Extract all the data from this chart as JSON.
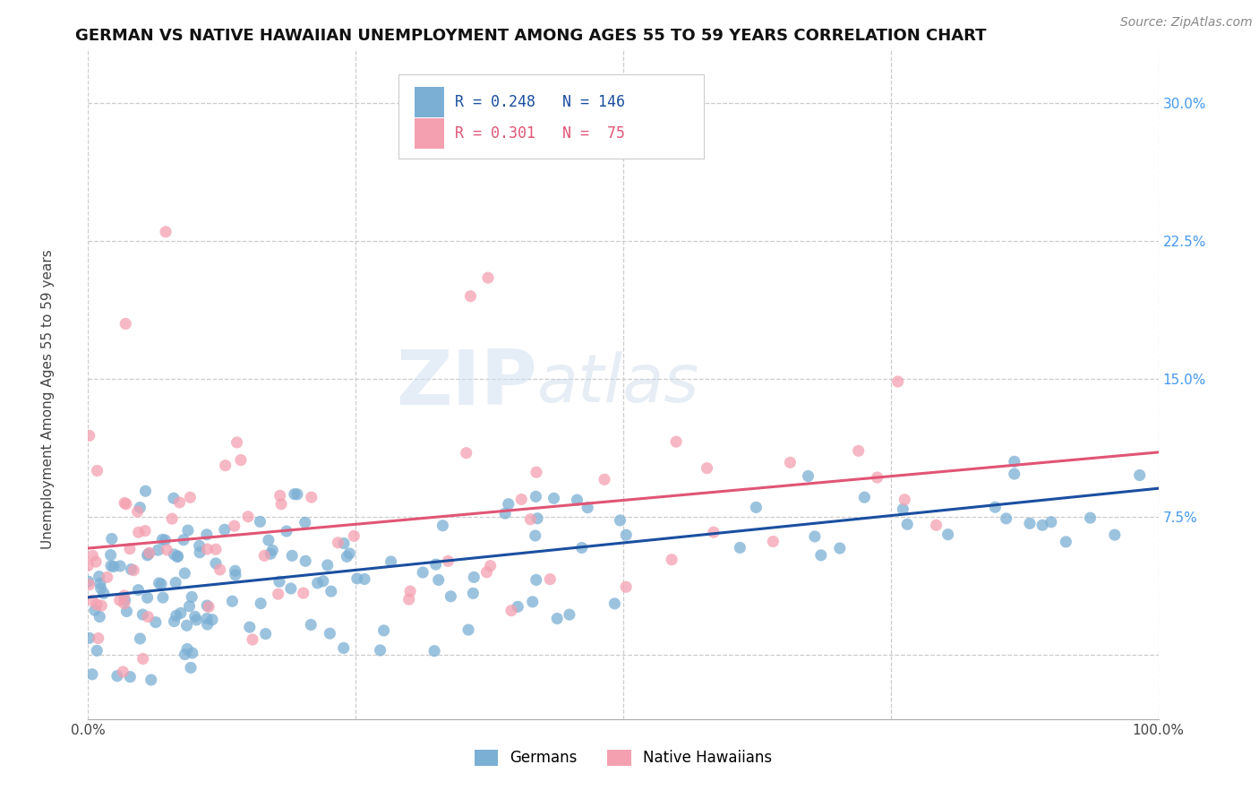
{
  "title": "GERMAN VS NATIVE HAWAIIAN UNEMPLOYMENT AMONG AGES 55 TO 59 YEARS CORRELATION CHART",
  "source": "Source: ZipAtlas.com",
  "ylabel": "Unemployment Among Ages 55 to 59 years",
  "xlim": [
    0.0,
    100.0
  ],
  "ylim": [
    -3.5,
    33.0
  ],
  "ytick_positions": [
    0.0,
    7.5,
    15.0,
    22.5,
    30.0
  ],
  "xtick_positions": [
    0.0,
    25.0,
    50.0,
    75.0,
    100.0
  ],
  "ytick_labels": [
    "",
    "7.5%",
    "15.0%",
    "22.5%",
    "30.0%"
  ],
  "xtick_labels": [
    "0.0%",
    "",
    "",
    "",
    "100.0%"
  ],
  "color_german": "#7BAFD4",
  "color_hawaiian": "#F4A0B0",
  "color_german_line": "#1A4FA0",
  "color_hawaiian_line": "#E05575",
  "color_ytick": "#4499EE",
  "legend_line1": "R = 0.248   N = 146",
  "legend_line2": "R = 0.301   N =  75",
  "watermark_zip": "ZIP",
  "watermark_atlas": "atlas",
  "title_fontsize": 13,
  "label_fontsize": 11,
  "tick_fontsize": 11,
  "source_fontsize": 10
}
